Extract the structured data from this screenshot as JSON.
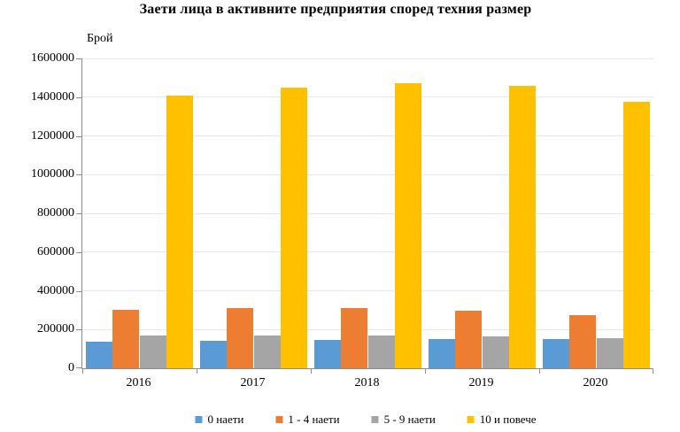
{
  "chart_data": {
    "type": "bar",
    "title": "Заети лица в активните предприятия според техния размер",
    "y_axis_title": "Брой",
    "categories": [
      "2016",
      "2017",
      "2018",
      "2019",
      "2020"
    ],
    "series": [
      {
        "name": "0 наети",
        "color": "#5B9BD5",
        "values": [
          137000,
          141000,
          145000,
          150000,
          153000
        ]
      },
      {
        "name": "1 - 4 наети",
        "color": "#ED7D31",
        "values": [
          300000,
          309000,
          310000,
          295000,
          276000
        ]
      },
      {
        "name": "5 - 9 наети",
        "color": "#A5A5A5",
        "values": [
          168000,
          167000,
          168000,
          165000,
          157000
        ]
      },
      {
        "name": "10 и повече",
        "color": "#FFC000",
        "values": [
          1410000,
          1450000,
          1470000,
          1458000,
          1378000
        ]
      }
    ],
    "ylim": [
      0,
      1600000
    ],
    "y_tick_step": 200000,
    "y_tick_labels": [
      "0",
      "200000",
      "400000",
      "600000",
      "800000",
      "1000000",
      "1200000",
      "1400000",
      "1600000"
    ],
    "grid": true,
    "legend_position": "bottom",
    "colors": {
      "gridline": "#DEE9F2",
      "axis": "#8C8C8C",
      "text": "#000000",
      "background": "#FFFFFF"
    }
  }
}
